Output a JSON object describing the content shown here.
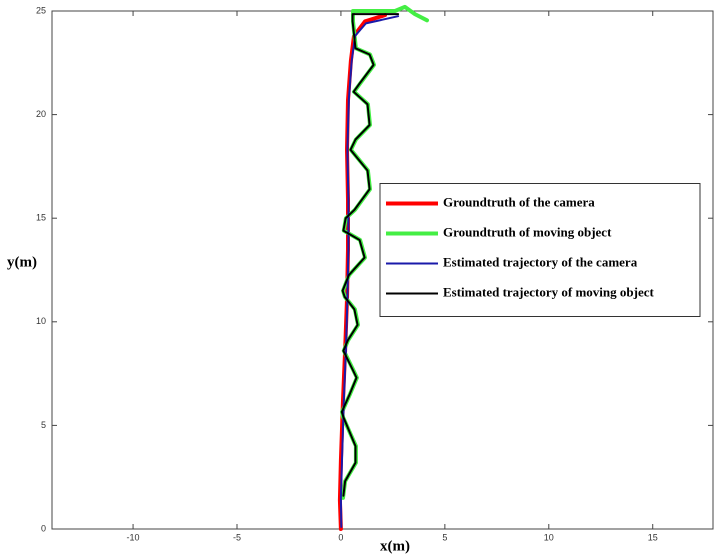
{
  "chart_data": {
    "type": "line",
    "xlabel": "x(m)",
    "ylabel": "y(m)",
    "xlim": [
      -13.9,
      17.9
    ],
    "ylim": [
      0,
      25
    ],
    "xticks": [
      -10,
      -5,
      0,
      5,
      10,
      15
    ],
    "yticks": [
      0,
      5,
      10,
      15,
      20,
      25
    ],
    "grid": false,
    "legend": "right",
    "series": [
      {
        "name": "Groundtruth of the camera",
        "color": "#ff0000",
        "linewidth": 4,
        "x": [
          0,
          -0.05,
          0,
          0.1,
          0.2,
          0.29,
          0.34,
          0.34,
          0.29,
          0.34,
          0.48,
          0.63,
          1.16,
          2.12
        ],
        "values": [
          0,
          1.4,
          3.3,
          6.2,
          8.6,
          11.1,
          13.5,
          15.9,
          18.3,
          20.7,
          22.6,
          23.8,
          24.5,
          24.8
        ]
      },
      {
        "name": "Groundtruth of moving object",
        "color": "#44ee44",
        "linewidth": 4,
        "x": [
          0.1,
          0.2,
          0.72,
          0.72,
          0.1,
          0.05,
          0.43,
          0.77,
          0.58,
          0.14,
          0.34,
          0.82,
          0.67,
          0.19,
          0.1,
          0.39,
          1.16,
          0.92,
          0.14,
          0.24,
          0.67,
          1.4,
          1.3,
          0.48,
          0.72,
          1.4,
          1.3,
          0.63,
          0.92,
          1.59,
          1.4,
          0.72,
          0.58,
          0.58,
          2.6,
          3.08,
          3.56,
          4.14
        ],
        "values": [
          1.5,
          2.3,
          3.2,
          4.0,
          5.4,
          5.65,
          6.5,
          7.3,
          7.7,
          8.6,
          9.1,
          9.85,
          10.6,
          11.2,
          11.5,
          12.25,
          13.1,
          13.95,
          14.4,
          15.0,
          15.4,
          16.4,
          17.3,
          18.3,
          18.8,
          19.5,
          20.5,
          21.1,
          21.5,
          22.4,
          22.9,
          23.2,
          24.5,
          25.0,
          25.0,
          25.2,
          24.85,
          24.55
        ]
      },
      {
        "name": "Estimated trajectory of the camera",
        "color": "#1a1aaa",
        "linewidth": 2,
        "x": [
          0.02,
          0,
          0.05,
          0.14,
          0.24,
          0.31,
          0.36,
          0.36,
          0.31,
          0.38,
          0.52,
          0.68,
          1.2,
          2.75
        ],
        "values": [
          0.1,
          1.5,
          3.3,
          6.2,
          8.6,
          11.1,
          13.5,
          15.9,
          18.3,
          20.7,
          22.6,
          23.8,
          24.4,
          24.75
        ]
      },
      {
        "name": "Estimated trajectory of moving object",
        "color": "#000000",
        "linewidth": 2,
        "x": [
          0.12,
          0.2,
          0.7,
          0.7,
          0.12,
          0.04,
          0.42,
          0.75,
          0.56,
          0.12,
          0.33,
          0.8,
          0.65,
          0.18,
          0.08,
          0.38,
          1.14,
          0.9,
          0.12,
          0.23,
          0.65,
          1.38,
          1.28,
          0.46,
          0.7,
          1.38,
          1.28,
          0.61,
          0.9,
          1.57,
          1.38,
          0.7,
          0.56,
          0.56,
          2.75
        ],
        "values": [
          1.6,
          2.3,
          3.2,
          4.0,
          5.4,
          5.65,
          6.5,
          7.3,
          7.7,
          8.6,
          9.1,
          9.85,
          10.6,
          11.2,
          11.5,
          12.25,
          13.1,
          13.95,
          14.4,
          15.0,
          15.4,
          16.4,
          17.3,
          18.3,
          18.8,
          19.5,
          20.5,
          21.1,
          21.5,
          22.4,
          22.9,
          23.2,
          24.5,
          24.85,
          24.85
        ]
      }
    ]
  }
}
